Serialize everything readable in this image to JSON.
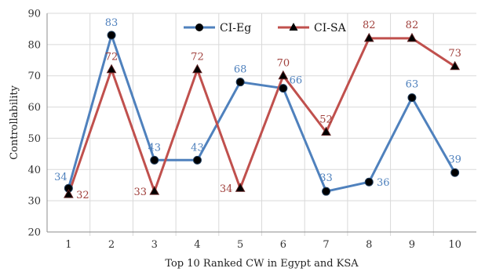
{
  "chart_data": {
    "type": "line",
    "title": "",
    "xlabel": "Top 10 Ranked CW in Egypt and KSA",
    "ylabel": "Controllability",
    "x": [
      "1",
      "2",
      "3",
      "4",
      "5",
      "6",
      "7",
      "8",
      "9",
      "10"
    ],
    "ylim": [
      20,
      90
    ],
    "yticks": [
      20,
      30,
      40,
      50,
      60,
      70,
      80,
      90
    ],
    "grid": true,
    "legend_position": "top-center",
    "series": [
      {
        "name": "CI-Eg",
        "values": [
          34,
          83,
          43,
          43,
          68,
          66,
          33,
          36,
          63,
          39
        ],
        "color": "#4f81bd",
        "marker": "circle",
        "marker_color": "#000000",
        "label_color": "#4f81bd"
      },
      {
        "name": "CI-SA",
        "values": [
          32,
          72,
          33,
          72,
          34,
          70,
          52,
          82,
          82,
          73
        ],
        "color": "#c0504d",
        "marker": "triangle",
        "marker_color": "#000000",
        "label_color": "#a0403c"
      }
    ]
  }
}
